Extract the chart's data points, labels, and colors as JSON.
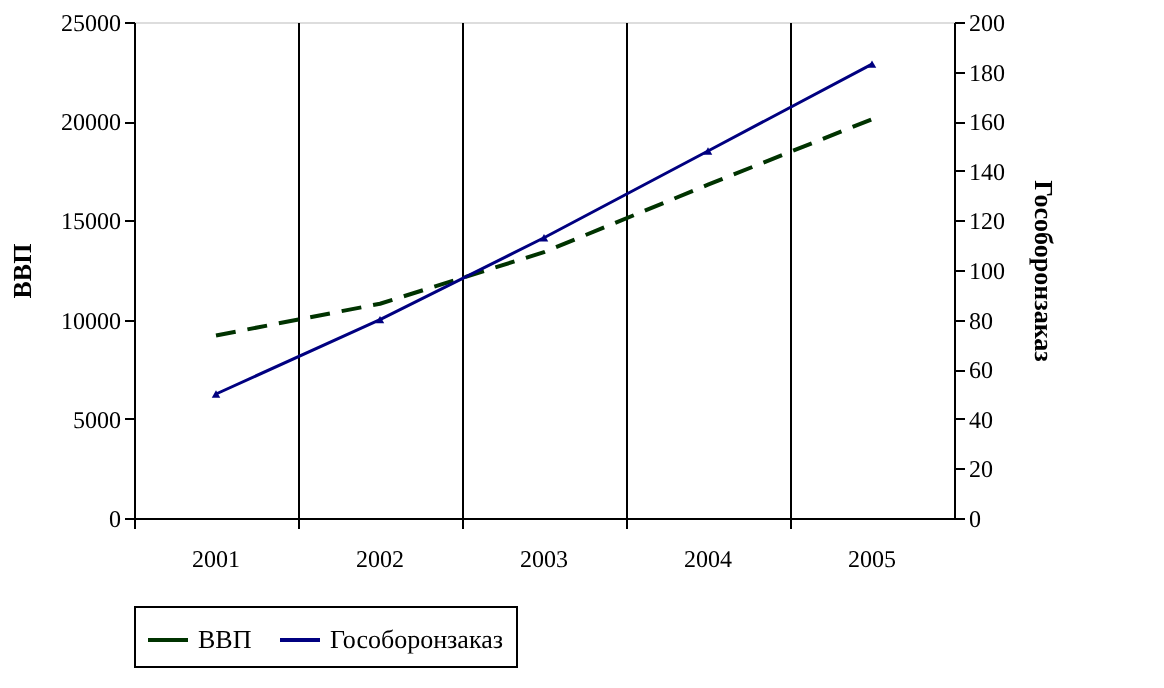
{
  "chart_data": {
    "type": "line",
    "categories": [
      "2001",
      "2002",
      "2003",
      "2004",
      "2005"
    ],
    "ylabel": "ВВП",
    "y2label": "Гособоронзаказ",
    "ylim": [
      0,
      25000
    ],
    "yticks": [
      0,
      5000,
      10000,
      15000,
      20000,
      25000
    ],
    "y2lim": [
      0,
      200
    ],
    "y2ticks": [
      0,
      20,
      40,
      60,
      80,
      100,
      120,
      140,
      160,
      180,
      200
    ],
    "grid": "x",
    "legend": "bottom",
    "series": [
      {
        "name": "ВВП",
        "color": "#003300",
        "line_style": "dashed",
        "marker": "none",
        "values": [
          9200,
          10800,
          13400,
          16800,
          20100
        ]
      },
      {
        "name": "Гособоронзаказ",
        "color": "#000080",
        "line_style": "solid",
        "marker": "triangle",
        "axis": "y2",
        "values": [
          50,
          80,
          113,
          148,
          183
        ]
      }
    ]
  }
}
